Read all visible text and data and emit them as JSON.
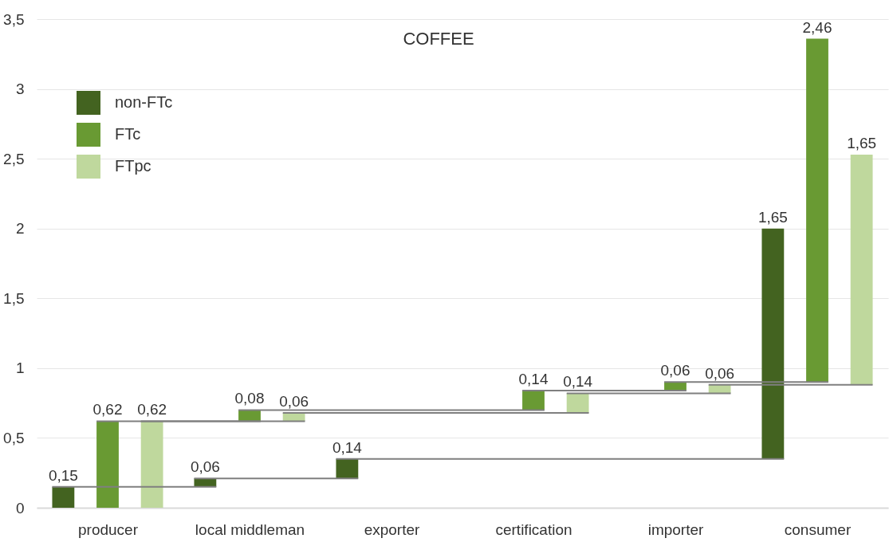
{
  "chart_data": {
    "type": "bar",
    "title": "COFFEE",
    "categories": [
      "producer",
      "local middleman",
      "exporter",
      "certification",
      "importer",
      "consumer"
    ],
    "series": [
      {
        "name": "non-FTc",
        "color": "#436320",
        "base": [
          0,
          0.15,
          0.21,
          null,
          null,
          0.35
        ],
        "values": [
          0.15,
          0.06,
          0.14,
          null,
          null,
          1.65
        ],
        "value_labels": [
          "0,15",
          "0,06",
          "0,14",
          null,
          null,
          "1,65"
        ]
      },
      {
        "name": "FTc",
        "color": "#699a33",
        "base": [
          0,
          0.62,
          null,
          0.7,
          0.84,
          0.9
        ],
        "values": [
          0.62,
          0.08,
          null,
          0.14,
          0.06,
          2.46
        ],
        "value_labels": [
          "0,62",
          "0,08",
          null,
          "0,14",
          "0,06",
          "2,46"
        ]
      },
      {
        "name": "FTpc",
        "color": "#bfd89d",
        "base": [
          0,
          0.62,
          null,
          0.68,
          0.82,
          0.88
        ],
        "values": [
          0.62,
          0.06,
          null,
          0.14,
          0.06,
          1.65
        ],
        "value_labels": [
          "0,62",
          "0,06",
          null,
          "0,14",
          "0,06",
          "1,65"
        ]
      }
    ],
    "ylim": [
      0,
      3.5
    ],
    "yticks": [
      0,
      {
        "value": 0.5,
        "label": "0,5"
      },
      1,
      {
        "value": 1.5,
        "label": "1,5"
      },
      2,
      {
        "value": 2.5,
        "label": "2,5"
      },
      3,
      {
        "value": 3.5,
        "label": "3,5"
      }
    ],
    "grid": "y",
    "legend": "top left"
  }
}
